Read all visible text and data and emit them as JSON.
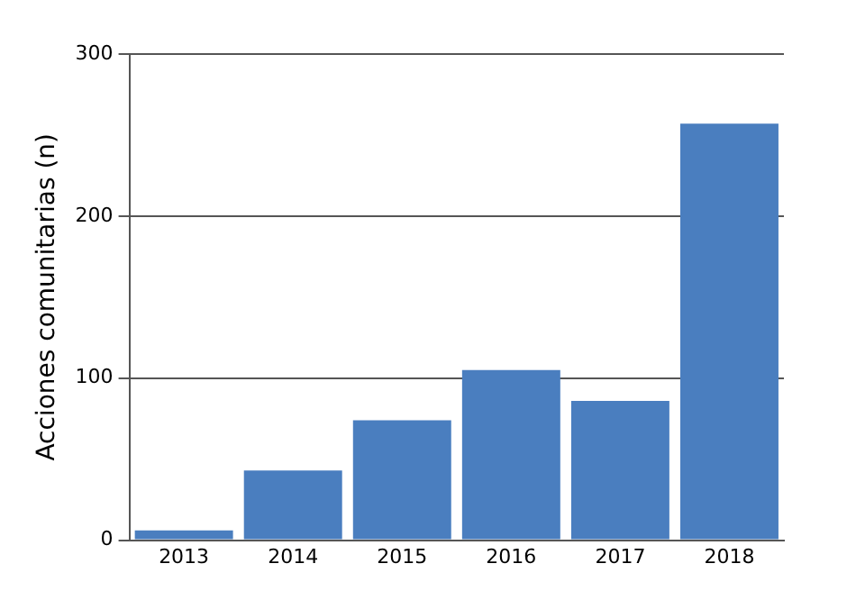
{
  "chart_data": {
    "type": "bar",
    "ylabel": "Acciones comunitarias (n)",
    "categories": [
      "2013",
      "2014",
      "2015",
      "2016",
      "2017",
      "2018"
    ],
    "values": [
      6,
      43,
      74,
      105,
      86,
      257
    ],
    "color": "#4a7ebf",
    "ylim": [
      0,
      300
    ],
    "yticks": [
      0,
      100,
      200,
      300
    ],
    "grid": "y"
  }
}
